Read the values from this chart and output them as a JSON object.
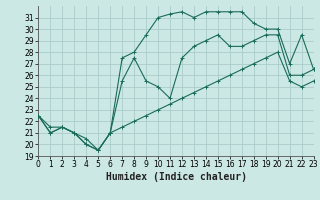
{
  "title": "",
  "xlabel": "Humidex (Indice chaleur)",
  "bg_color": "#cce8e4",
  "grid_color": "#aaccca",
  "line_color": "#1a6b5a",
  "x_hours": [
    0,
    1,
    2,
    3,
    4,
    5,
    6,
    7,
    8,
    9,
    10,
    11,
    12,
    13,
    14,
    15,
    16,
    17,
    18,
    19,
    20,
    21,
    22,
    23
  ],
  "line_max": [
    22.5,
    21.0,
    21.5,
    21.0,
    20.0,
    19.5,
    21.0,
    27.5,
    28.0,
    29.5,
    31.0,
    31.3,
    31.5,
    31.0,
    31.5,
    31.5,
    31.5,
    31.5,
    30.5,
    30.0,
    30.0,
    27.0,
    29.5,
    26.5
  ],
  "line_mid": [
    22.5,
    21.5,
    21.5,
    21.0,
    20.5,
    19.5,
    21.0,
    25.5,
    27.5,
    25.5,
    25.0,
    24.0,
    27.5,
    28.5,
    29.0,
    29.5,
    28.5,
    28.5,
    29.0,
    29.5,
    29.5,
    26.0,
    26.0,
    26.5
  ],
  "line_min": [
    22.5,
    21.0,
    21.5,
    21.0,
    20.0,
    19.5,
    21.0,
    21.5,
    22.0,
    22.5,
    23.0,
    23.5,
    24.0,
    24.5,
    25.0,
    25.5,
    26.0,
    26.5,
    27.0,
    27.5,
    28.0,
    25.5,
    25.0,
    25.5
  ],
  "ylim": [
    19,
    32
  ],
  "xlim": [
    0,
    23
  ],
  "yticks": [
    19,
    20,
    21,
    22,
    23,
    24,
    25,
    26,
    27,
    28,
    29,
    30,
    31
  ],
  "xticks": [
    0,
    1,
    2,
    3,
    4,
    5,
    6,
    7,
    8,
    9,
    10,
    11,
    12,
    13,
    14,
    15,
    16,
    17,
    18,
    19,
    20,
    21,
    22,
    23
  ],
  "tick_fontsize": 5.5,
  "xlabel_fontsize": 7.0
}
